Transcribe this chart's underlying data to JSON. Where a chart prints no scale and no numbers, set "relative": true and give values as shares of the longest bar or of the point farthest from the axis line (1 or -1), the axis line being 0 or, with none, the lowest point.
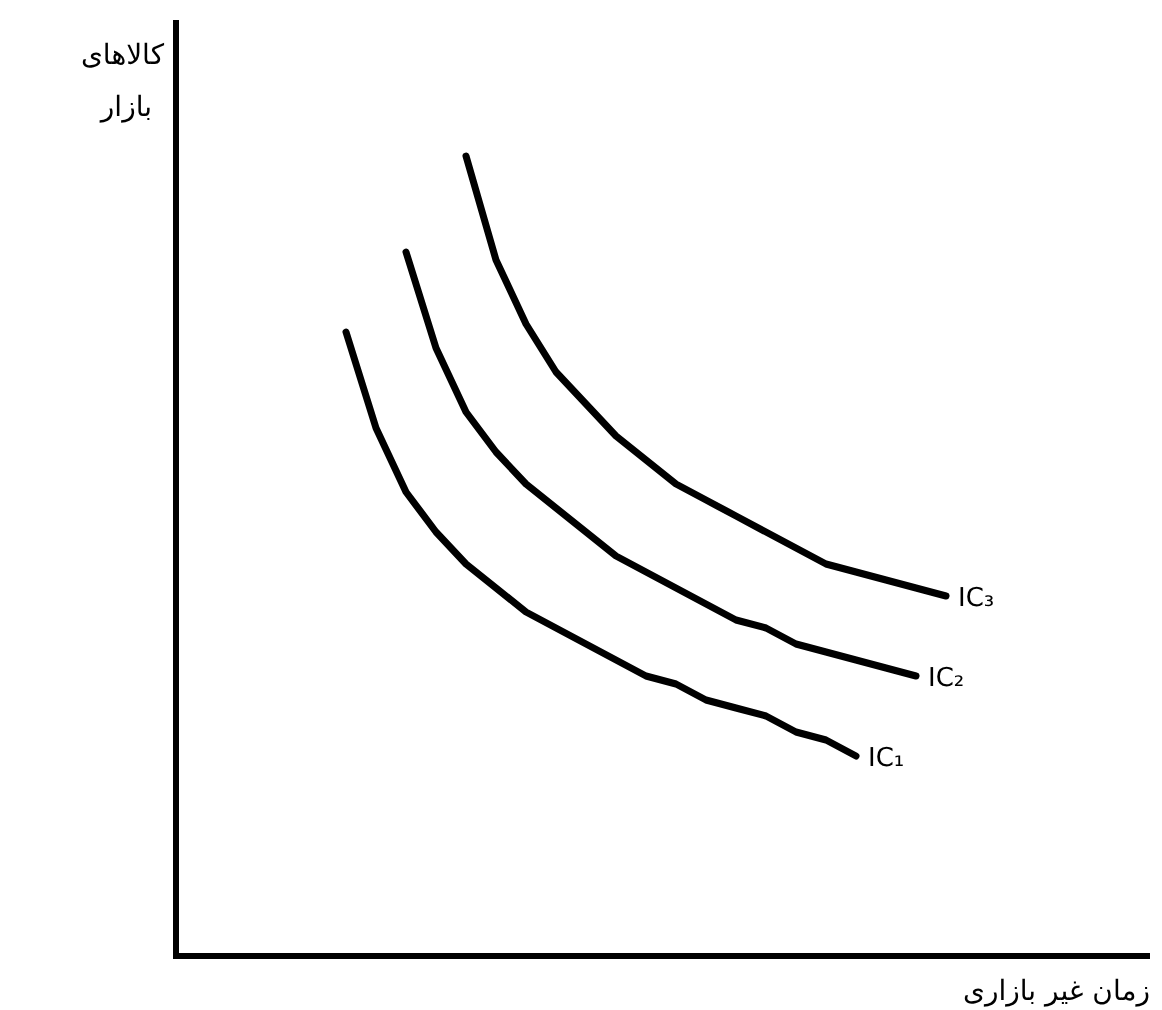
{
  "chart_data": {
    "type": "line",
    "relative": true,
    "xlabel": "زمان غیر بازاری",
    "annotations": [
      "کالاهای بازار"
    ],
    "categories": [
      null,
      null,
      null,
      null,
      null,
      null,
      null,
      null,
      null,
      null,
      null,
      null,
      null,
      null,
      null,
      null,
      null,
      null,
      null,
      null,
      null
    ],
    "series": [
      {
        "name": "IC₁",
        "color": "#000000",
        "values": [
          0.78,
          0.66,
          0.58,
          0.53,
          0.49,
          0.46,
          0.43,
          0.41,
          0.39,
          0.37,
          0.35,
          0.34,
          0.32,
          0.31,
          0.3,
          0.28,
          0.27,
          0.25,
          null,
          null,
          null
        ]
      },
      {
        "name": "IC₂",
        "color": "#000000",
        "values": [
          null,
          null,
          0.88,
          0.76,
          0.68,
          0.63,
          0.59,
          0.56,
          0.53,
          0.5,
          0.48,
          0.46,
          0.44,
          0.42,
          0.41,
          0.39,
          0.38,
          0.37,
          0.36,
          0.35,
          null
        ]
      },
      {
        "name": "IC₃",
        "color": "#000000",
        "values": [
          null,
          null,
          null,
          null,
          1,
          0.87,
          0.79,
          0.73,
          0.69,
          0.65,
          0.62,
          0.59,
          0.57,
          0.55,
          0.53,
          0.51,
          0.49,
          0.48,
          0.47,
          0.46,
          0.45
        ]
      }
    ]
  }
}
